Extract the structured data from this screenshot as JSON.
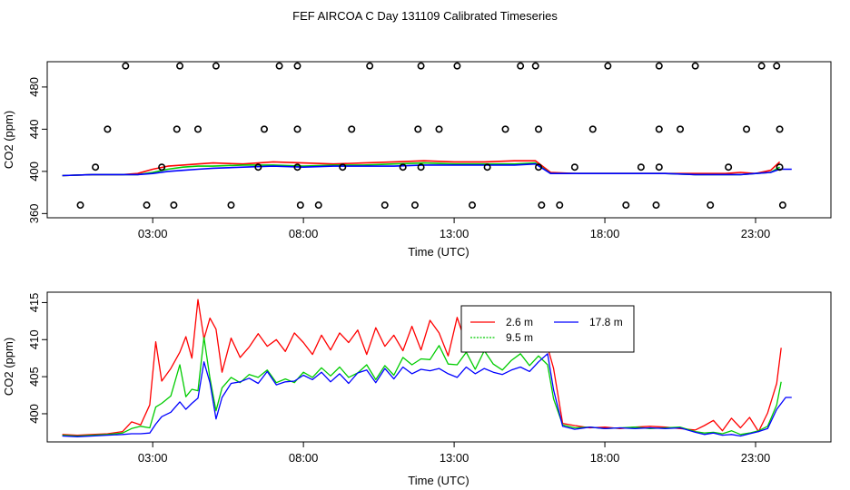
{
  "title": "FEF AIRCOA C  Day 131109  Calibrated Timeseries",
  "chart_data": [
    {
      "type": "scatter",
      "xlabel": "Time (UTC)",
      "ylabel": "CO2 (ppm)",
      "xlim": [
        -0.5,
        25.5
      ],
      "ylim": [
        356,
        504
      ],
      "xticks": [
        3,
        8,
        13,
        18,
        23
      ],
      "xtick_labels": [
        "03:00",
        "08:00",
        "13:00",
        "18:00",
        "23:00"
      ],
      "yticks": [
        360,
        400,
        440,
        480
      ],
      "ytick_labels": [
        "360",
        "400",
        "440",
        "480"
      ],
      "flag_points": [
        {
          "x": 2.1,
          "y": 500
        },
        {
          "x": 3.9,
          "y": 500
        },
        {
          "x": 5.1,
          "y": 500
        },
        {
          "x": 7.2,
          "y": 500
        },
        {
          "x": 7.8,
          "y": 500
        },
        {
          "x": 10.2,
          "y": 500
        },
        {
          "x": 11.9,
          "y": 500
        },
        {
          "x": 13.1,
          "y": 500
        },
        {
          "x": 15.2,
          "y": 500
        },
        {
          "x": 15.7,
          "y": 500
        },
        {
          "x": 18.1,
          "y": 500
        },
        {
          "x": 19.8,
          "y": 500
        },
        {
          "x": 21.0,
          "y": 500
        },
        {
          "x": 23.2,
          "y": 500
        },
        {
          "x": 23.7,
          "y": 500
        },
        {
          "x": 1.5,
          "y": 440
        },
        {
          "x": 3.8,
          "y": 440
        },
        {
          "x": 4.5,
          "y": 440
        },
        {
          "x": 6.7,
          "y": 440
        },
        {
          "x": 7.8,
          "y": 440
        },
        {
          "x": 9.6,
          "y": 440
        },
        {
          "x": 11.8,
          "y": 440
        },
        {
          "x": 12.5,
          "y": 440
        },
        {
          "x": 14.7,
          "y": 440
        },
        {
          "x": 15.8,
          "y": 440
        },
        {
          "x": 17.6,
          "y": 440
        },
        {
          "x": 19.8,
          "y": 440
        },
        {
          "x": 20.5,
          "y": 440
        },
        {
          "x": 22.7,
          "y": 440
        },
        {
          "x": 23.8,
          "y": 440
        },
        {
          "x": 1.1,
          "y": 404
        },
        {
          "x": 3.3,
          "y": 404
        },
        {
          "x": 6.5,
          "y": 404
        },
        {
          "x": 7.8,
          "y": 404
        },
        {
          "x": 9.3,
          "y": 404
        },
        {
          "x": 11.3,
          "y": 404
        },
        {
          "x": 11.9,
          "y": 404
        },
        {
          "x": 14.1,
          "y": 404
        },
        {
          "x": 15.8,
          "y": 404
        },
        {
          "x": 17.0,
          "y": 404
        },
        {
          "x": 19.2,
          "y": 404
        },
        {
          "x": 19.8,
          "y": 404
        },
        {
          "x": 22.1,
          "y": 404
        },
        {
          "x": 23.8,
          "y": 404
        },
        {
          "x": 0.6,
          "y": 368
        },
        {
          "x": 2.8,
          "y": 368
        },
        {
          "x": 3.7,
          "y": 368
        },
        {
          "x": 5.6,
          "y": 368
        },
        {
          "x": 7.9,
          "y": 368
        },
        {
          "x": 8.5,
          "y": 368
        },
        {
          "x": 10.7,
          "y": 368
        },
        {
          "x": 11.7,
          "y": 368
        },
        {
          "x": 13.6,
          "y": 368
        },
        {
          "x": 15.9,
          "y": 368
        },
        {
          "x": 16.5,
          "y": 368
        },
        {
          "x": 18.7,
          "y": 368
        },
        {
          "x": 19.7,
          "y": 368
        },
        {
          "x": 21.5,
          "y": 368
        },
        {
          "x": 23.9,
          "y": 368
        }
      ],
      "series": [
        {
          "name": "2.6 m",
          "color": "#ff0000",
          "x": [
            0,
            1,
            2,
            2.5,
            3,
            3.5,
            4,
            4.5,
            5,
            6,
            7,
            8,
            9,
            10,
            11,
            12,
            13,
            14,
            15,
            15.7,
            16.2,
            17,
            18,
            19,
            20,
            21,
            22,
            22.5,
            23,
            23.5,
            23.8
          ],
          "y": [
            396,
            397,
            397,
            398,
            402,
            405,
            406,
            407,
            408,
            407,
            409,
            408,
            407,
            408,
            409,
            410,
            409,
            409,
            410,
            410,
            399,
            398,
            398,
            398,
            398,
            398,
            398,
            399,
            398,
            401,
            409
          ]
        },
        {
          "name": "9.5 m",
          "color": "#00cc00",
          "x": [
            0,
            1,
            2,
            2.5,
            3,
            3.5,
            4,
            4.5,
            5,
            6,
            7,
            8,
            9,
            10,
            11,
            12,
            13,
            14,
            15,
            15.7,
            16.2,
            17,
            18,
            19,
            20,
            21,
            22,
            22.5,
            23,
            23.5,
            23.8
          ],
          "y": [
            396,
            397,
            397,
            397,
            399,
            402,
            404,
            405,
            405,
            406,
            406,
            405,
            406,
            406,
            407,
            408,
            407,
            407,
            407,
            408,
            398,
            398,
            398,
            398,
            398,
            397,
            397,
            397,
            398,
            399,
            404
          ]
        },
        {
          "name": "17.8 m",
          "color": "#0000ff",
          "x": [
            0,
            1,
            2,
            2.5,
            3,
            3.5,
            4,
            4.5,
            5,
            6,
            7,
            8,
            9,
            10,
            11,
            12,
            13,
            14,
            15,
            15.7,
            16.2,
            17,
            18,
            19,
            20,
            21,
            22,
            22.5,
            23,
            23.5,
            23.8,
            24.2
          ],
          "y": [
            396,
            397,
            397,
            397,
            398,
            400,
            401,
            402,
            403,
            404,
            405,
            404,
            405,
            405,
            405,
            406,
            406,
            406,
            406,
            407,
            398,
            398,
            398,
            398,
            398,
            397,
            397,
            397,
            398,
            399,
            402,
            402
          ]
        }
      ]
    },
    {
      "type": "line",
      "xlabel": "Time (UTC)",
      "ylabel": "CO2 (ppm)",
      "xlim": [
        -0.5,
        25.5
      ],
      "ylim": [
        396.2,
        416.4
      ],
      "xticks": [
        3,
        8,
        13,
        18,
        23
      ],
      "xtick_labels": [
        "03:00",
        "08:00",
        "13:00",
        "18:00",
        "23:00"
      ],
      "yticks": [
        400,
        405,
        410,
        415
      ],
      "ytick_labels": [
        "400",
        "405",
        "410",
        "415"
      ],
      "legend_position": "top-center",
      "series": [
        {
          "name": "2.6 m",
          "color": "#ff0000",
          "x": [
            0,
            0.5,
            1,
            1.5,
            2,
            2.3,
            2.6,
            2.9,
            3.1,
            3.3,
            3.6,
            3.9,
            4.1,
            4.3,
            4.5,
            4.7,
            4.9,
            5.1,
            5.3,
            5.6,
            5.9,
            6.2,
            6.5,
            6.8,
            7.1,
            7.4,
            7.7,
            8.0,
            8.3,
            8.6,
            8.9,
            9.2,
            9.5,
            9.8,
            10.1,
            10.4,
            10.7,
            11.0,
            11.3,
            11.6,
            11.9,
            12.2,
            12.5,
            12.8,
            13.1,
            13.4,
            13.7,
            14.0,
            14.3,
            14.6,
            14.9,
            15.2,
            15.5,
            15.8,
            16.1,
            16.3,
            16.6,
            17.0,
            17.5,
            18,
            18.5,
            19,
            19.5,
            20,
            20.5,
            21,
            21.3,
            21.6,
            21.9,
            22.2,
            22.5,
            22.8,
            23.1,
            23.4,
            23.7,
            23.85
          ],
          "y": [
            397.2,
            397.1,
            397.2,
            397.3,
            397.6,
            398.9,
            398.5,
            401.2,
            409.7,
            404.4,
            406.1,
            408.3,
            410.4,
            407.5,
            415.4,
            410.1,
            412.9,
            411.4,
            405.6,
            410.2,
            407.6,
            409.0,
            410.8,
            409.1,
            410.0,
            408.4,
            410.9,
            409.6,
            408.0,
            410.6,
            408.6,
            410.9,
            409.6,
            411.3,
            408.0,
            411.6,
            409.1,
            410.6,
            408.5,
            411.8,
            408.6,
            412.6,
            410.9,
            407.8,
            413.0,
            409.3,
            410.8,
            409.7,
            411.4,
            409.4,
            412.2,
            410.2,
            409.5,
            410.6,
            409.0,
            406.1,
            398.7,
            398.4,
            398.1,
            398.2,
            398.0,
            398.2,
            398.3,
            398.2,
            398.0,
            397.8,
            398.4,
            399.1,
            397.7,
            399.4,
            398.1,
            399.5,
            397.6,
            400.1,
            404.1,
            408.9
          ]
        },
        {
          "name": "9.5 m",
          "color": "#00cc00",
          "x": [
            0,
            0.5,
            1,
            1.5,
            2,
            2.3,
            2.6,
            2.9,
            3.1,
            3.3,
            3.6,
            3.9,
            4.1,
            4.3,
            4.5,
            4.7,
            4.9,
            5.1,
            5.3,
            5.6,
            5.9,
            6.2,
            6.5,
            6.8,
            7.1,
            7.4,
            7.7,
            8.0,
            8.3,
            8.6,
            8.9,
            9.2,
            9.5,
            9.8,
            10.1,
            10.4,
            10.7,
            11.0,
            11.3,
            11.6,
            11.9,
            12.2,
            12.5,
            12.8,
            13.1,
            13.4,
            13.7,
            14.0,
            14.3,
            14.6,
            14.9,
            15.2,
            15.5,
            15.8,
            16.1,
            16.3,
            16.6,
            17.0,
            17.5,
            18,
            18.5,
            19,
            19.5,
            20,
            20.5,
            21,
            21.3,
            21.6,
            21.9,
            22.2,
            22.5,
            22.8,
            23.1,
            23.4,
            23.7,
            23.85
          ],
          "y": [
            397.1,
            397.0,
            397.1,
            397.2,
            397.4,
            398.0,
            398.3,
            398.1,
            400.9,
            401.4,
            402.4,
            406.6,
            402.3,
            403.3,
            403.1,
            410.3,
            404.8,
            400.4,
            403.5,
            404.9,
            404.2,
            405.3,
            404.9,
            405.9,
            404.2,
            404.7,
            404.2,
            405.6,
            404.9,
            406.2,
            405.1,
            406.3,
            404.9,
            405.5,
            406.6,
            404.6,
            406.5,
            405.2,
            407.6,
            406.6,
            407.4,
            407.3,
            409.2,
            406.7,
            406.6,
            408.3,
            406.0,
            408.5,
            406.7,
            405.9,
            407.2,
            408.1,
            406.5,
            407.8,
            406.6,
            402.0,
            398.5,
            398.1,
            398.2,
            398.0,
            398.1,
            398.2,
            398.0,
            398.1,
            398.2,
            397.6,
            397.4,
            397.5,
            397.3,
            397.7,
            397.2,
            397.4,
            397.7,
            398.3,
            401.2,
            404.3
          ]
        },
        {
          "name": "17.8 m",
          "color": "#0000ff",
          "x": [
            0,
            0.5,
            1,
            1.5,
            2,
            2.3,
            2.6,
            2.9,
            3.1,
            3.3,
            3.6,
            3.9,
            4.1,
            4.3,
            4.5,
            4.7,
            4.9,
            5.1,
            5.3,
            5.6,
            5.9,
            6.2,
            6.5,
            6.8,
            7.1,
            7.4,
            7.7,
            8.0,
            8.3,
            8.6,
            8.9,
            9.2,
            9.5,
            9.8,
            10.1,
            10.4,
            10.7,
            11.0,
            11.3,
            11.6,
            11.9,
            12.2,
            12.5,
            12.8,
            13.1,
            13.4,
            13.7,
            14.0,
            14.3,
            14.6,
            14.9,
            15.2,
            15.5,
            15.8,
            16.1,
            16.3,
            16.6,
            17.0,
            17.5,
            18,
            18.5,
            19,
            19.5,
            20,
            20.5,
            21,
            21.3,
            21.6,
            21.9,
            22.2,
            22.5,
            22.8,
            23.1,
            23.4,
            23.7,
            24.0,
            24.2
          ],
          "y": [
            397.0,
            396.9,
            397.0,
            397.1,
            397.2,
            397.3,
            397.3,
            397.4,
            398.6,
            399.6,
            400.2,
            401.6,
            400.6,
            401.4,
            402.1,
            407.0,
            404.2,
            399.3,
            402.2,
            404.1,
            404.3,
            404.8,
            404.1,
            405.7,
            403.9,
            404.3,
            404.4,
            405.2,
            404.6,
            405.6,
            404.3,
            405.4,
            404.1,
            405.5,
            405.9,
            404.2,
            406.1,
            404.7,
            406.3,
            405.4,
            406.0,
            405.8,
            406.1,
            405.4,
            404.9,
            406.3,
            405.4,
            406.1,
            405.6,
            405.3,
            405.9,
            406.3,
            405.7,
            407.0,
            408.1,
            403.2,
            398.3,
            397.9,
            398.2,
            398.0,
            398.1,
            398.0,
            398.1,
            398.0,
            398.1,
            397.5,
            397.2,
            397.4,
            397.1,
            397.2,
            397.0,
            397.3,
            397.6,
            398.0,
            400.6,
            402.2,
            402.2
          ]
        }
      ]
    }
  ]
}
